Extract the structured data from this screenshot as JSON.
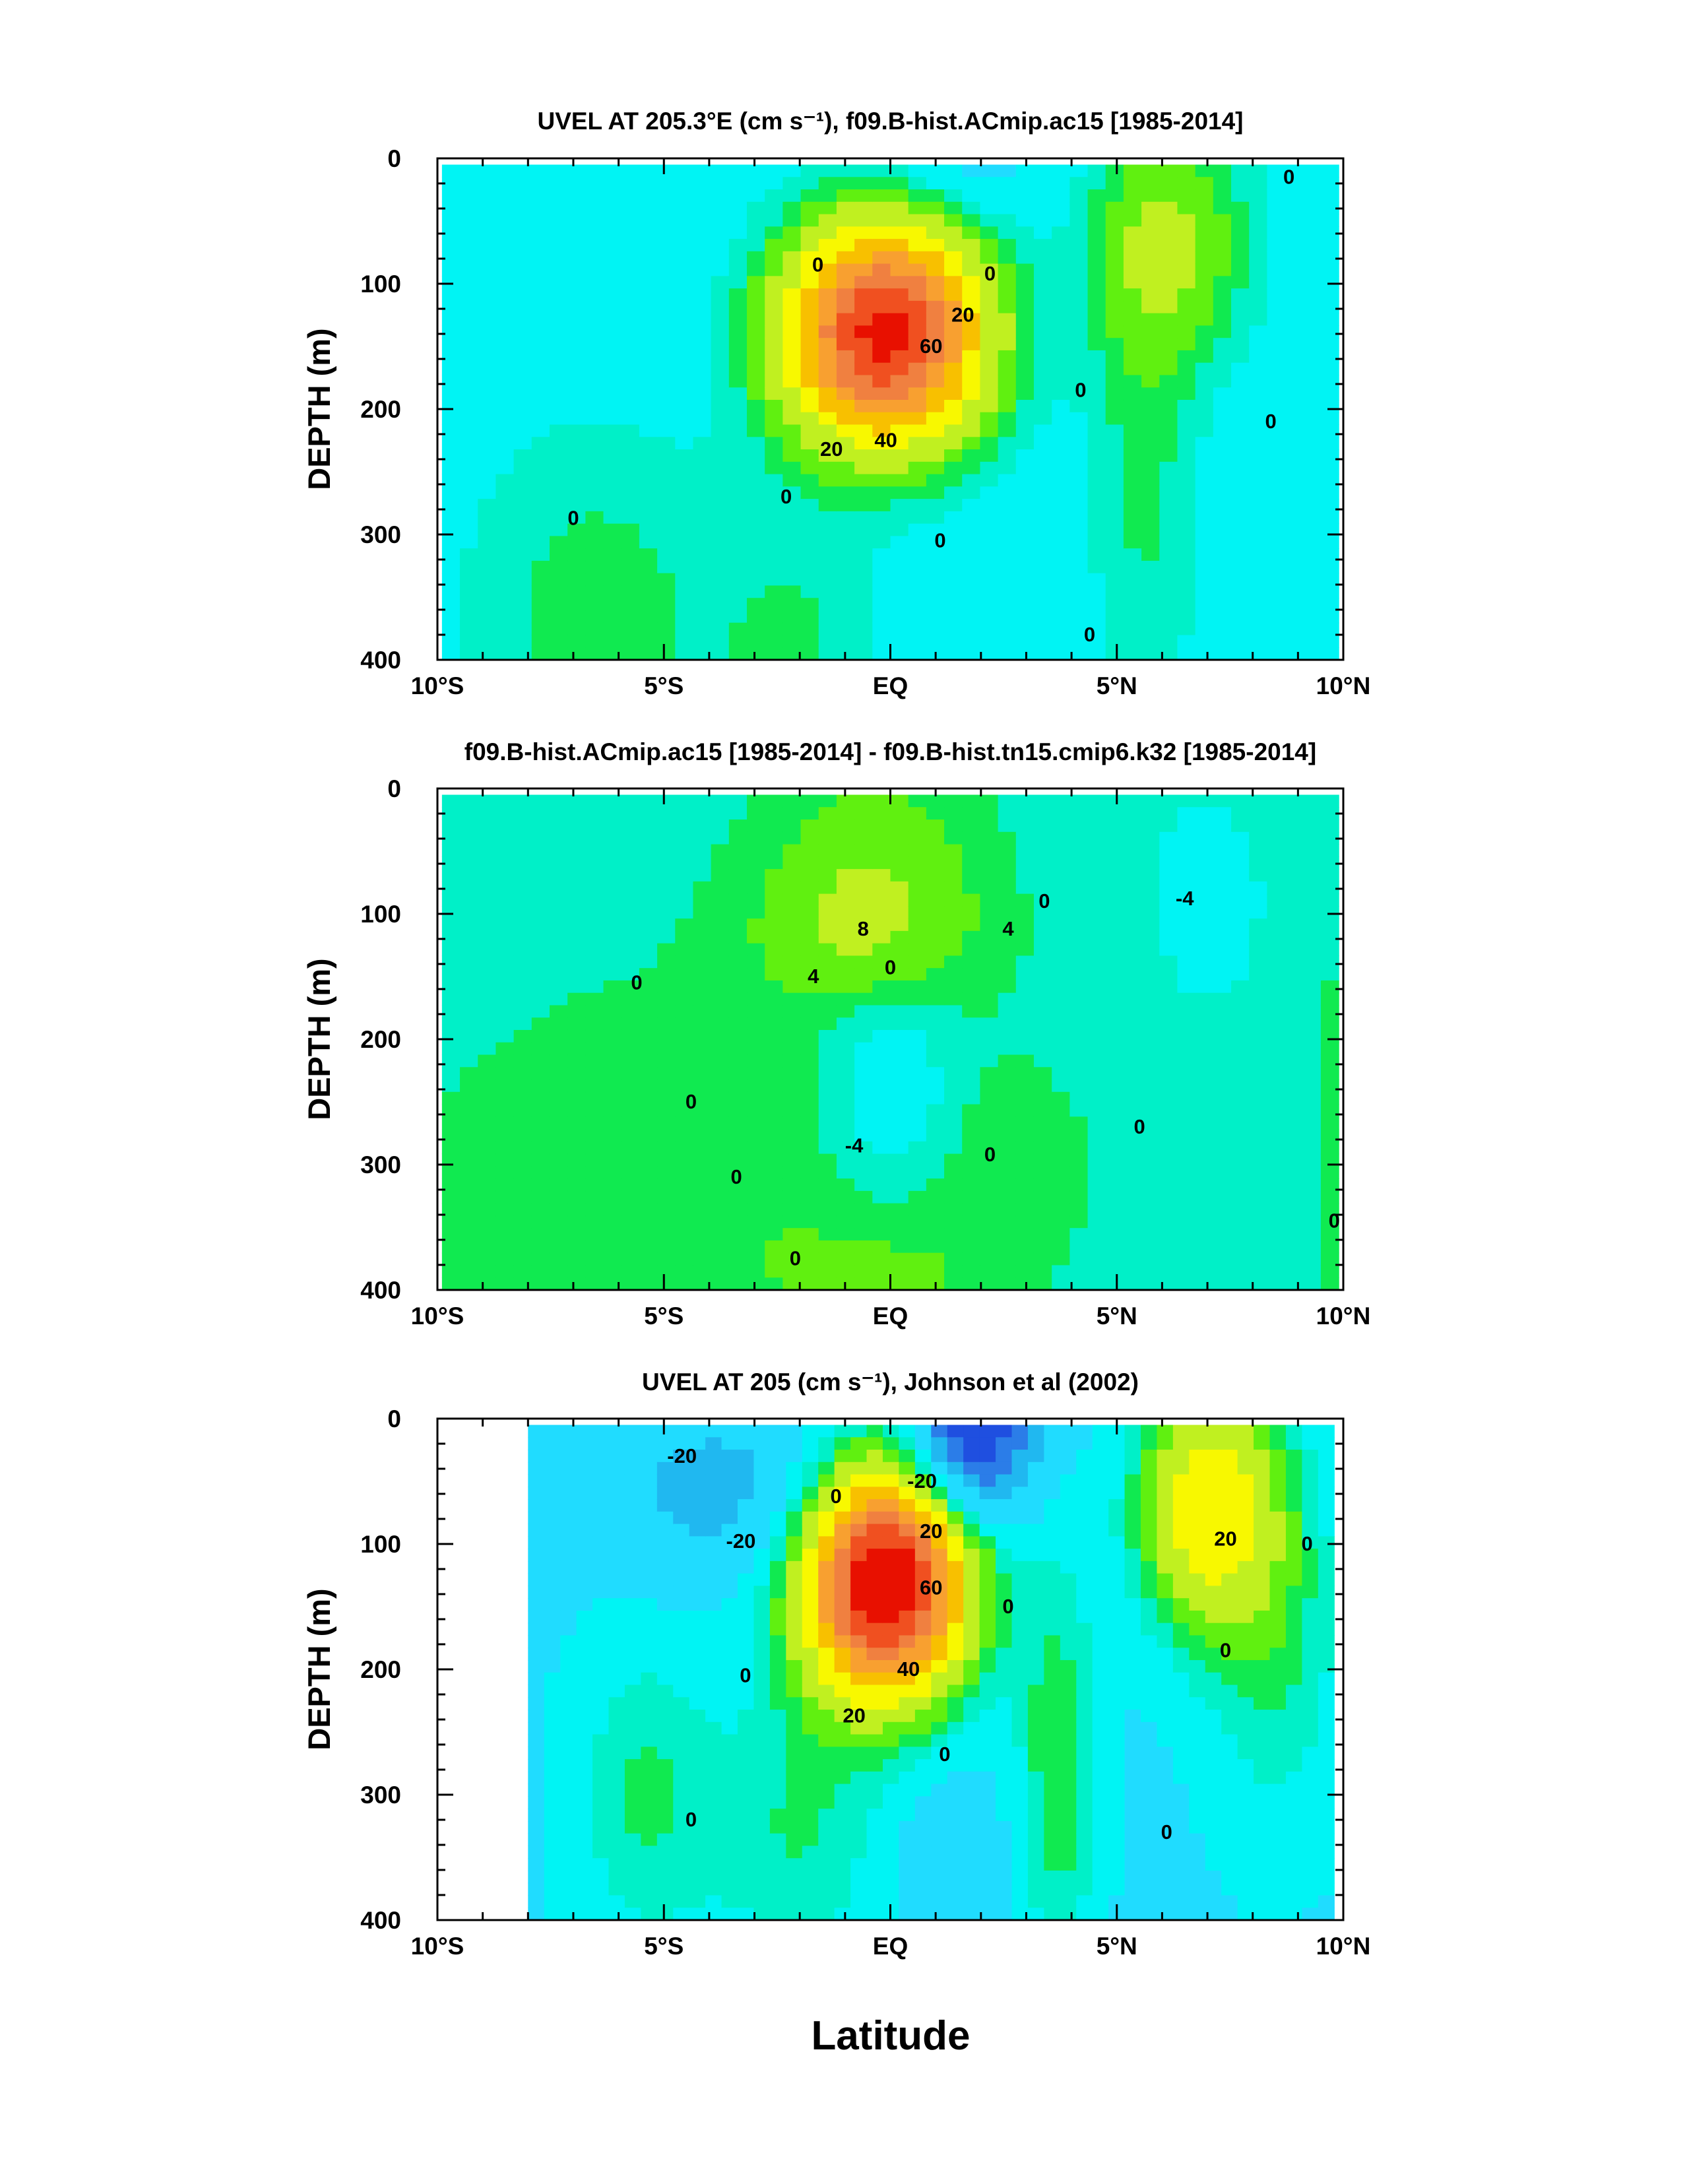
{
  "figure": {
    "xlabel": "Latitude"
  },
  "colors": {
    "levels_bounds": [
      -50,
      -40,
      -30,
      -20,
      -10,
      -4,
      0,
      4,
      10,
      20,
      30,
      40,
      50,
      60,
      70,
      80
    ],
    "palette": [
      "#1f4fe0",
      "#2b7de8",
      "#20b8f0",
      "#20dcff",
      "#00f4f4",
      "#00f0c8",
      "#10ea50",
      "#60f010",
      "#c0f020",
      "#f8f800",
      "#f8c000",
      "#f8a030",
      "#f08040",
      "#f05020",
      "#e81000"
    ]
  },
  "chart_data": [
    {
      "type": "heatmap",
      "id": "model",
      "title": "UVEL AT 205.3°E (cm s⁻¹), f09.B-hist.ACmip.ac15 [1985-2014]",
      "xlabel": "",
      "ylabel": "DEPTH (m)",
      "xlim": [
        -10,
        10
      ],
      "ylim": [
        400,
        0
      ],
      "x_ticks": [
        -10,
        -5,
        0,
        5,
        10
      ],
      "x_tick_labels": [
        "10°S",
        "5°S",
        "EQ",
        "5°N",
        "10°N"
      ],
      "y_ticks": [
        0,
        100,
        200,
        300,
        400
      ],
      "y_tick_labels": [
        "0",
        "100",
        "200",
        "300",
        "400"
      ],
      "background": -8,
      "features": [
        {
          "lat": -0.1,
          "depth": 140,
          "amp": 82,
          "sx": 1.55,
          "sy": 62
        },
        {
          "lat": 6.3,
          "depth": 70,
          "amp": 16,
          "sx": 1.3,
          "sy": 65
        },
        {
          "lat": 5.6,
          "depth": 230,
          "amp": 9,
          "sx": 0.9,
          "sy": 200
        },
        {
          "lat": -6.5,
          "depth": 360,
          "amp": 10,
          "sx": 2.2,
          "sy": 110
        },
        {
          "lat": 1.5,
          "depth": 5,
          "amp": -7,
          "sx": 1.2,
          "sy": 35
        },
        {
          "lat": -2,
          "depth": 400,
          "amp": 8,
          "sx": 1.3,
          "sy": 90
        }
      ],
      "contour_labels": [
        {
          "lat": -1.6,
          "depth": 85,
          "text": "0"
        },
        {
          "lat": 1.6,
          "depth": 125,
          "text": "20"
        },
        {
          "lat": 2.2,
          "depth": 92,
          "text": "0"
        },
        {
          "lat": 0.9,
          "depth": 150,
          "text": "60"
        },
        {
          "lat": -0.1,
          "depth": 225,
          "text": "40"
        },
        {
          "lat": -1.3,
          "depth": 232,
          "text": "20"
        },
        {
          "lat": -2.3,
          "depth": 270,
          "text": "0"
        },
        {
          "lat": 1.1,
          "depth": 305,
          "text": "0"
        },
        {
          "lat": -7,
          "depth": 287,
          "text": "0"
        },
        {
          "lat": 4.2,
          "depth": 185,
          "text": "0"
        },
        {
          "lat": 4.4,
          "depth": 380,
          "text": "0"
        },
        {
          "lat": 8.8,
          "depth": 15,
          "text": "0"
        },
        {
          "lat": 8.4,
          "depth": 210,
          "text": "0"
        }
      ]
    },
    {
      "type": "heatmap",
      "id": "difference",
      "title": "f09.B-hist.ACmip.ac15 [1985-2014] - f09.B-hist.tn15.cmip6.k32 [1985-2014]",
      "xlabel": "",
      "ylabel": "DEPTH (m)",
      "xlim": [
        -10,
        10
      ],
      "ylim": [
        400,
        0
      ],
      "x_ticks": [
        -10,
        -5,
        0,
        5,
        10
      ],
      "x_tick_labels": [
        "10°S",
        "5°S",
        "EQ",
        "5°N",
        "10°N"
      ],
      "y_ticks": [
        0,
        100,
        200,
        300,
        400
      ],
      "y_tick_labels": [
        "0",
        "100",
        "200",
        "300",
        "400"
      ],
      "background": -1.8,
      "features": [
        {
          "lat": -0.5,
          "depth": 110,
          "amp": 13,
          "sx": 1.7,
          "sy": 45
        },
        {
          "lat": -0.3,
          "depth": 30,
          "amp": 6,
          "sx": 1.6,
          "sy": 40
        },
        {
          "lat": 0,
          "depth": 245,
          "amp": -9,
          "sx": 1.0,
          "sy": 65
        },
        {
          "lat": 7,
          "depth": 90,
          "amp": -3.5,
          "sx": 1.2,
          "sy": 80
        },
        {
          "lat": -3,
          "depth": 330,
          "amp": 4.5,
          "sx": 3.5,
          "sy": 130
        },
        {
          "lat": 2.5,
          "depth": 300,
          "amp": 3,
          "sx": 1.5,
          "sy": 60
        },
        {
          "lat": 0,
          "depth": 400,
          "amp": 5,
          "sx": 1.6,
          "sy": 50
        },
        {
          "lat": 10,
          "depth": 280,
          "amp": 4,
          "sx": 0.5,
          "sy": 120
        },
        {
          "lat": -8,
          "depth": 400,
          "amp": 2.5,
          "sx": 3,
          "sy": 150
        }
      ],
      "contour_labels": [
        {
          "lat": -0.6,
          "depth": 112,
          "text": "8"
        },
        {
          "lat": 2.6,
          "depth": 112,
          "text": "4"
        },
        {
          "lat": -1.7,
          "depth": 150,
          "text": "4"
        },
        {
          "lat": 0,
          "depth": 143,
          "text": "0"
        },
        {
          "lat": 3.4,
          "depth": 90,
          "text": "0"
        },
        {
          "lat": 6.5,
          "depth": 88,
          "text": "-4"
        },
        {
          "lat": -5.6,
          "depth": 155,
          "text": "0"
        },
        {
          "lat": -4.4,
          "depth": 250,
          "text": "0"
        },
        {
          "lat": -0.8,
          "depth": 285,
          "text": "-4"
        },
        {
          "lat": -3.4,
          "depth": 310,
          "text": "0"
        },
        {
          "lat": 2.2,
          "depth": 292,
          "text": "0"
        },
        {
          "lat": 5.5,
          "depth": 270,
          "text": "0"
        },
        {
          "lat": -2.1,
          "depth": 375,
          "text": "0"
        },
        {
          "lat": 9.8,
          "depth": 345,
          "text": "0"
        }
      ]
    },
    {
      "type": "heatmap",
      "id": "observed",
      "title": "UVEL AT 205 (cm s⁻¹), Johnson et al (2002)",
      "xlabel": "",
      "ylabel": "DEPTH (m)",
      "xlim": [
        -10,
        10
      ],
      "ylim": [
        400,
        0
      ],
      "x_ticks": [
        -10,
        -5,
        0,
        5,
        10
      ],
      "x_tick_labels": [
        "10°S",
        "5°S",
        "EQ",
        "5°N",
        "10°N"
      ],
      "y_ticks": [
        0,
        100,
        200,
        300,
        400
      ],
      "y_tick_labels": [
        "0",
        "100",
        "200",
        "300",
        "400"
      ],
      "data_lat_range": [
        -8,
        9.8
      ],
      "background": -12,
      "features": [
        {
          "lat": -0.1,
          "depth": 130,
          "amp": 95,
          "sx": 1.3,
          "sy": 65
        },
        {
          "lat": 1.8,
          "depth": 15,
          "amp": -42,
          "sx": 0.9,
          "sy": 45
        },
        {
          "lat": -3.5,
          "depth": 60,
          "amp": -12,
          "sx": 2,
          "sy": 50
        },
        {
          "lat": 7,
          "depth": 70,
          "amp": 38,
          "sx": 1.1,
          "sy": 70
        },
        {
          "lat": 3.7,
          "depth": 280,
          "amp": 15,
          "sx": 0.7,
          "sy": 130
        },
        {
          "lat": -2,
          "depth": 330,
          "amp": 12,
          "sx": 1.5,
          "sy": 90
        },
        {
          "lat": -5.5,
          "depth": 300,
          "amp": 12,
          "sx": 1.2,
          "sy": 100
        },
        {
          "lat": 8.5,
          "depth": 180,
          "amp": 12,
          "sx": 1.2,
          "sy": 120
        },
        {
          "lat": 1.3,
          "depth": 350,
          "amp": -6,
          "sx": 0.8,
          "sy": 45
        }
      ],
      "contour_labels": [
        {
          "lat": -4.6,
          "depth": 30,
          "text": "-20"
        },
        {
          "lat": -3.3,
          "depth": 98,
          "text": "-20"
        },
        {
          "lat": -1.2,
          "depth": 62,
          "text": "0"
        },
        {
          "lat": 0.7,
          "depth": 50,
          "text": "-20"
        },
        {
          "lat": 0.9,
          "depth": 90,
          "text": "20"
        },
        {
          "lat": 0.9,
          "depth": 135,
          "text": "60"
        },
        {
          "lat": 2.6,
          "depth": 150,
          "text": "0"
        },
        {
          "lat": 0.4,
          "depth": 200,
          "text": "40"
        },
        {
          "lat": -0.8,
          "depth": 237,
          "text": "20"
        },
        {
          "lat": 1.2,
          "depth": 268,
          "text": "0"
        },
        {
          "lat": -3.2,
          "depth": 205,
          "text": "0"
        },
        {
          "lat": -4.4,
          "depth": 320,
          "text": "0"
        },
        {
          "lat": 7.4,
          "depth": 96,
          "text": "20"
        },
        {
          "lat": 9.2,
          "depth": 100,
          "text": "0"
        },
        {
          "lat": 7.4,
          "depth": 185,
          "text": "0"
        },
        {
          "lat": 6.1,
          "depth": 330,
          "text": "0"
        }
      ]
    }
  ]
}
